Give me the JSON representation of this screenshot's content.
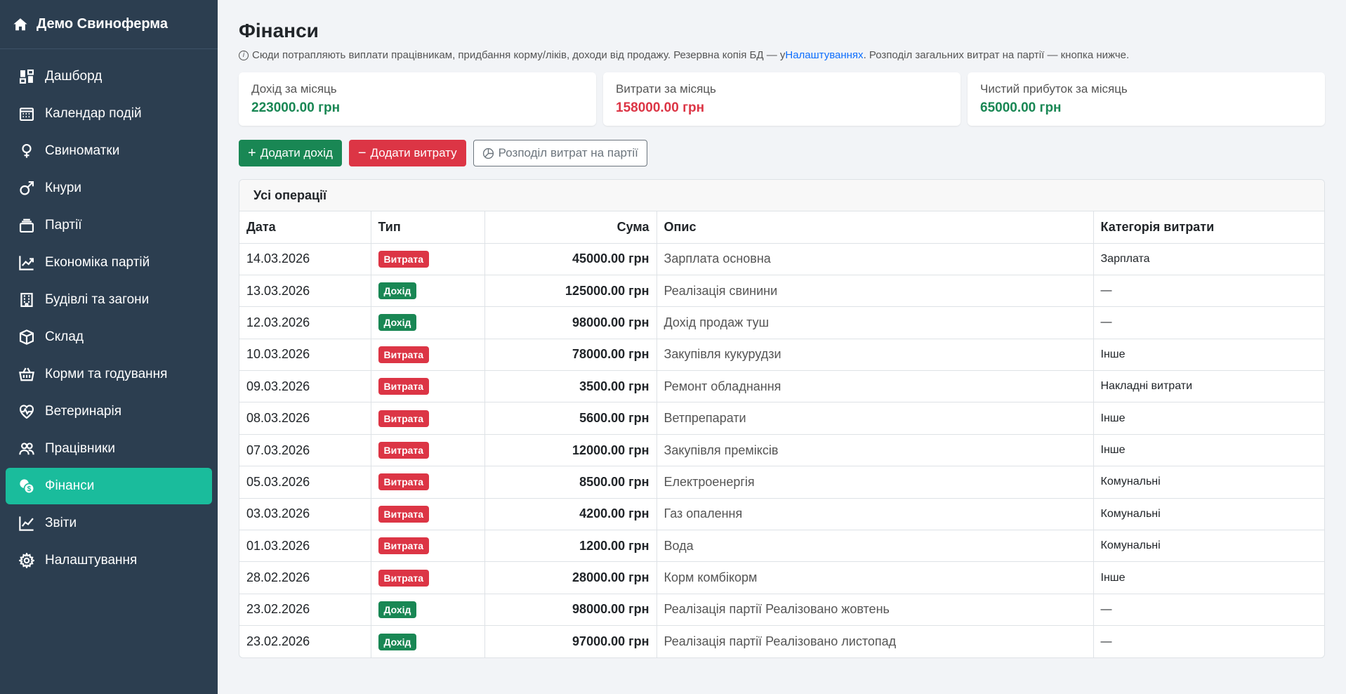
{
  "brand": {
    "title": "Демо Свиноферма"
  },
  "sidebar": {
    "items": [
      {
        "label": "Дашборд",
        "icon": "dashboard-icon"
      },
      {
        "label": "Календар подій",
        "icon": "calendar-icon"
      },
      {
        "label": "Свиноматки",
        "icon": "female-icon"
      },
      {
        "label": "Кнури",
        "icon": "male-icon"
      },
      {
        "label": "Партії",
        "icon": "stack-icon"
      },
      {
        "label": "Економіка партій",
        "icon": "graph-up-icon"
      },
      {
        "label": "Будівлі та загони",
        "icon": "building-icon"
      },
      {
        "label": "Склад",
        "icon": "box-icon"
      },
      {
        "label": "Корми та годування",
        "icon": "basket-icon"
      },
      {
        "label": "Ветеринарія",
        "icon": "heart-pulse-icon"
      },
      {
        "label": "Працівники",
        "icon": "people-icon"
      },
      {
        "label": "Фінанси",
        "icon": "coin-icon",
        "active": true
      },
      {
        "label": "Звіти",
        "icon": "chart-line-icon"
      },
      {
        "label": "Налаштування",
        "icon": "gear-icon"
      }
    ]
  },
  "page": {
    "title": "Фінанси",
    "info_before": "Сюди потрапляють виплати працівникам, придбання корму/ліків, доходи від продажу. Резервна копія БД — у ",
    "info_link": "Налаштуваннях",
    "info_after": ". Розподіл загальних витрат на партії — кнопка нижче."
  },
  "cards": {
    "income": {
      "label": "Дохід за місяць",
      "value": "223000.00 грн"
    },
    "expense": {
      "label": "Витрати за місяць",
      "value": "158000.00 грн"
    },
    "profit": {
      "label": "Чистий прибуток за місяць",
      "value": "65000.00 грн"
    }
  },
  "actions": {
    "add_income": "Додати дохід",
    "add_expense": "Додати витрату",
    "allocate": "Розподіл витрат на партії"
  },
  "table": {
    "title": "Усі операції",
    "headers": {
      "date": "Дата",
      "type": "Тип",
      "sum": "Сума",
      "desc": "Опис",
      "cat": "Категорія витрати"
    },
    "rows": [
      {
        "date": "14.03.2026",
        "type": "Витрата",
        "kind": "exp",
        "sum": "45000.00 грн",
        "desc": "Зарплата основна",
        "cat": "Зарплата"
      },
      {
        "date": "13.03.2026",
        "type": "Дохід",
        "kind": "inc",
        "sum": "125000.00 грн",
        "desc": "Реалізація свинини",
        "cat": "—"
      },
      {
        "date": "12.03.2026",
        "type": "Дохід",
        "kind": "inc",
        "sum": "98000.00 грн",
        "desc": "Дохід продаж туш",
        "cat": "—"
      },
      {
        "date": "10.03.2026",
        "type": "Витрата",
        "kind": "exp",
        "sum": "78000.00 грн",
        "desc": "Закупівля кукурудзи",
        "cat": "Інше"
      },
      {
        "date": "09.03.2026",
        "type": "Витрата",
        "kind": "exp",
        "sum": "3500.00 грн",
        "desc": "Ремонт обладнання",
        "cat": "Накладні витрати"
      },
      {
        "date": "08.03.2026",
        "type": "Витрата",
        "kind": "exp",
        "sum": "5600.00 грн",
        "desc": "Ветпрепарати",
        "cat": "Інше"
      },
      {
        "date": "07.03.2026",
        "type": "Витрата",
        "kind": "exp",
        "sum": "12000.00 грн",
        "desc": "Закупівля преміксів",
        "cat": "Інше"
      },
      {
        "date": "05.03.2026",
        "type": "Витрата",
        "kind": "exp",
        "sum": "8500.00 грн",
        "desc": "Електроенергія",
        "cat": "Комунальні"
      },
      {
        "date": "03.03.2026",
        "type": "Витрата",
        "kind": "exp",
        "sum": "4200.00 грн",
        "desc": "Газ опалення",
        "cat": "Комунальні"
      },
      {
        "date": "01.03.2026",
        "type": "Витрата",
        "kind": "exp",
        "sum": "1200.00 грн",
        "desc": "Вода",
        "cat": "Комунальні"
      },
      {
        "date": "28.02.2026",
        "type": "Витрата",
        "kind": "exp",
        "sum": "28000.00 грн",
        "desc": "Корм комбікорм",
        "cat": "Інше"
      },
      {
        "date": "23.02.2026",
        "type": "Дохід",
        "kind": "inc",
        "sum": "98000.00 грн",
        "desc": "Реалізація партії Реалізовано жовтень",
        "cat": "—"
      },
      {
        "date": "23.02.2026",
        "type": "Дохід",
        "kind": "inc",
        "sum": "97000.00 грн",
        "desc": "Реалізація партії Реалізовано листопад",
        "cat": "—"
      }
    ]
  },
  "colors": {
    "sidebar": "#2c3e50",
    "active": "#1abc9c",
    "income": "#198754",
    "expense": "#dc3545",
    "link": "#0d6efd"
  }
}
